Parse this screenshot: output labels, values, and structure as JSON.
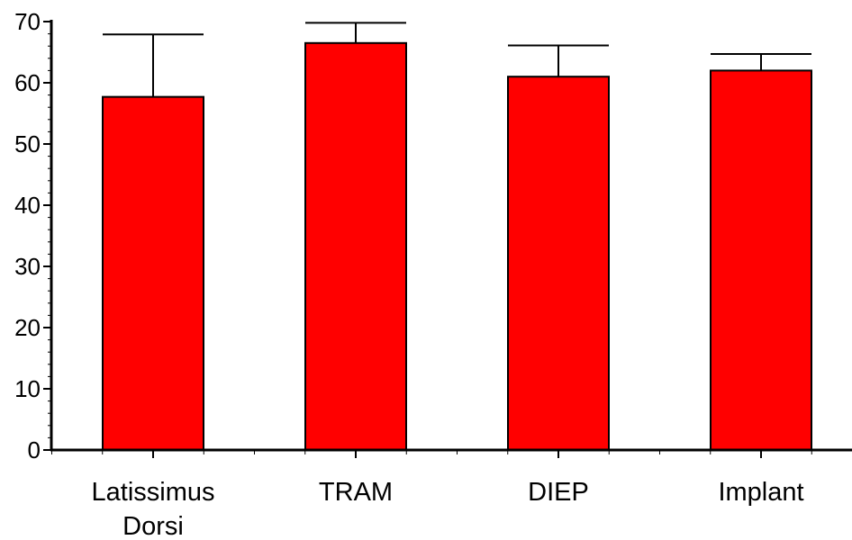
{
  "chart_data": {
    "type": "bar",
    "title": "",
    "xlabel": "",
    "ylabel": "",
    "ylim": [
      0,
      70
    ],
    "yticks": [
      0,
      10,
      20,
      30,
      40,
      50,
      60,
      70
    ],
    "yticks_minor_step": 2,
    "categories": [
      "Latissimus Dorsi",
      "TRAM",
      "DIEP",
      "Implant"
    ],
    "category_label_lines": [
      [
        "Latissimus",
        "Dorsi"
      ],
      [
        "TRAM"
      ],
      [
        "DIEP"
      ],
      [
        "Implant"
      ]
    ],
    "values": [
      57.7,
      66.5,
      61.0,
      62.0
    ],
    "error_upper": [
      67.9,
      69.8,
      66.1,
      64.7
    ],
    "grid": false,
    "legend": "none",
    "bar_color": "#ff0000",
    "outline_color": "#000000"
  }
}
